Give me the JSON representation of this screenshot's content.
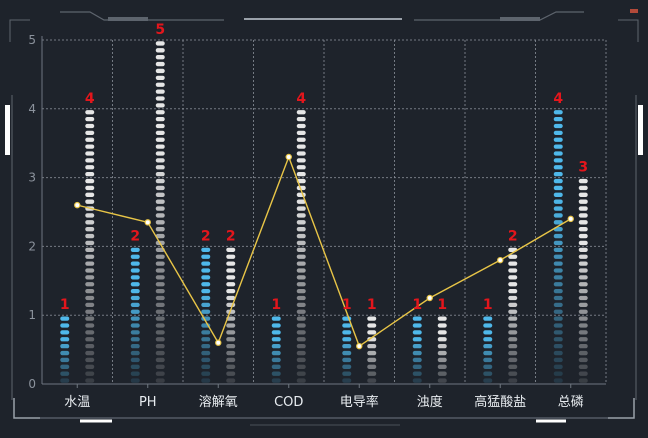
{
  "chart_data": {
    "type": "bar",
    "categories": [
      "水温",
      "PH",
      "溶解氧",
      "COD",
      "电导率",
      "浊度",
      "高猛酸盐",
      "总磷"
    ],
    "series": [
      {
        "values": [
          1,
          2,
          2,
          1,
          1,
          1,
          1,
          4
        ],
        "style": "pictorial-stack",
        "color": "#4fb8ea"
      },
      {
        "values": [
          4,
          5,
          2,
          4,
          1,
          1,
          2,
          3
        ],
        "style": "pictorial-stack",
        "color": "#e6e6e6"
      },
      {
        "values": [
          2.6,
          2.35,
          0.6,
          3.3,
          0.55,
          1.25,
          1.8,
          2.4
        ],
        "style": "line",
        "color": "#e8c547"
      }
    ],
    "ylim": [
      0,
      5
    ],
    "yticks": [
      0,
      1,
      2,
      3,
      4,
      5
    ],
    "grid": true,
    "xlabel": "",
    "ylabel": "",
    "title": ""
  },
  "theme": {
    "background": "#1e232b",
    "frame": "#6f7680",
    "grid": "#8a9099",
    "label_color": "#e3161c"
  }
}
